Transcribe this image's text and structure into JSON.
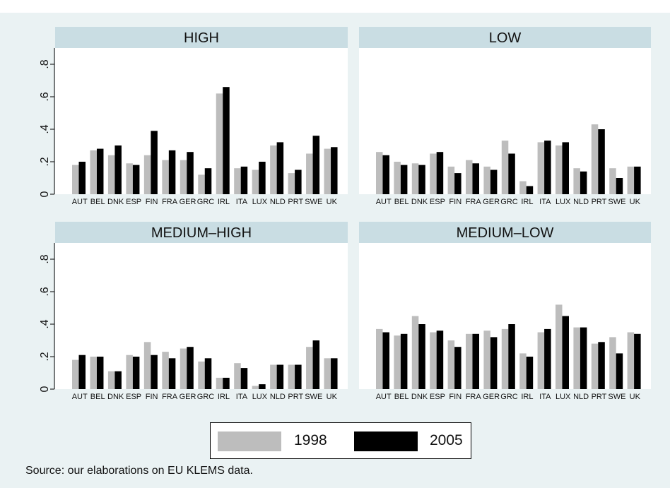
{
  "colors": {
    "s1998": "#bdbdbd",
    "s2005": "#000000",
    "strip": "#c9dde3",
    "plot_bg": "#ffffff",
    "background": "#eaf2f3"
  },
  "legend": {
    "label_1998": "1998",
    "label_2005": "2005"
  },
  "note": "Source: our elaborations on EU KLEMS data.",
  "chart_data": [
    {
      "type": "bar",
      "title": "HIGH",
      "categories": [
        "AUT",
        "BEL",
        "DNK",
        "ESP",
        "FIN",
        "FRA",
        "GER",
        "GRC",
        "IRL",
        "ITA",
        "LUX",
        "NLD",
        "PRT",
        "SWE",
        "UK"
      ],
      "ylim": [
        0,
        0.9
      ],
      "yticks": [
        0,
        0.2,
        0.4,
        0.6,
        0.8
      ],
      "ytick_labels": [
        "0",
        ".2",
        ".4",
        ".6",
        ".8"
      ],
      "series": [
        {
          "name": "1998",
          "values": [
            0.18,
            0.27,
            0.24,
            0.19,
            0.24,
            0.21,
            0.21,
            0.12,
            0.62,
            0.16,
            0.15,
            0.3,
            0.13,
            0.25,
            0.28
          ]
        },
        {
          "name": "2005",
          "values": [
            0.2,
            0.28,
            0.3,
            0.18,
            0.39,
            0.27,
            0.26,
            0.16,
            0.66,
            0.17,
            0.2,
            0.32,
            0.15,
            0.36,
            0.29
          ]
        }
      ]
    },
    {
      "type": "bar",
      "title": "LOW",
      "categories": [
        "AUT",
        "BEL",
        "DNK",
        "ESP",
        "FIN",
        "FRA",
        "GER",
        "GRC",
        "IRL",
        "ITA",
        "LUX",
        "NLD",
        "PRT",
        "SWE",
        "UK"
      ],
      "ylim": [
        0,
        0.9
      ],
      "yticks": [
        0,
        0.2,
        0.4,
        0.6,
        0.8
      ],
      "ytick_labels": [
        "0",
        ".2",
        ".4",
        ".6",
        ".8"
      ],
      "series": [
        {
          "name": "1998",
          "values": [
            0.26,
            0.2,
            0.19,
            0.25,
            0.17,
            0.21,
            0.17,
            0.33,
            0.08,
            0.32,
            0.3,
            0.16,
            0.43,
            0.16,
            0.17
          ]
        },
        {
          "name": "2005",
          "values": [
            0.24,
            0.18,
            0.18,
            0.26,
            0.13,
            0.19,
            0.15,
            0.25,
            0.05,
            0.33,
            0.32,
            0.14,
            0.4,
            0.1,
            0.17
          ]
        }
      ]
    },
    {
      "type": "bar",
      "title": "MEDIUM–HIGH",
      "categories": [
        "AUT",
        "BEL",
        "DNK",
        "ESP",
        "FIN",
        "FRA",
        "GER",
        "GRC",
        "IRL",
        "ITA",
        "LUX",
        "NLD",
        "PRT",
        "SWE",
        "UK"
      ],
      "ylim": [
        0,
        0.9
      ],
      "yticks": [
        0,
        0.2,
        0.4,
        0.6,
        0.8
      ],
      "ytick_labels": [
        "0",
        ".2",
        ".4",
        ".6",
        ".8"
      ],
      "series": [
        {
          "name": "1998",
          "values": [
            0.18,
            0.2,
            0.11,
            0.21,
            0.29,
            0.23,
            0.25,
            0.17,
            0.07,
            0.16,
            0.02,
            0.15,
            0.15,
            0.26,
            0.19
          ]
        },
        {
          "name": "2005",
          "values": [
            0.21,
            0.2,
            0.11,
            0.2,
            0.21,
            0.19,
            0.26,
            0.19,
            0.07,
            0.13,
            0.03,
            0.15,
            0.15,
            0.3,
            0.19
          ]
        }
      ]
    },
    {
      "type": "bar",
      "title": "MEDIUM–LOW",
      "categories": [
        "AUT",
        "BEL",
        "DNK",
        "ESP",
        "FIN",
        "FRA",
        "GER",
        "GRC",
        "IRL",
        "ITA",
        "LUX",
        "NLD",
        "PRT",
        "SWE",
        "UK"
      ],
      "ylim": [
        0,
        0.9
      ],
      "yticks": [
        0,
        0.2,
        0.4,
        0.6,
        0.8
      ],
      "ytick_labels": [
        "0",
        ".2",
        ".4",
        ".6",
        ".8"
      ],
      "series": [
        {
          "name": "1998",
          "values": [
            0.37,
            0.33,
            0.45,
            0.35,
            0.3,
            0.34,
            0.36,
            0.37,
            0.22,
            0.35,
            0.52,
            0.38,
            0.28,
            0.32,
            0.35
          ]
        },
        {
          "name": "2005",
          "values": [
            0.35,
            0.34,
            0.4,
            0.36,
            0.26,
            0.34,
            0.32,
            0.4,
            0.2,
            0.37,
            0.45,
            0.38,
            0.29,
            0.22,
            0.34
          ]
        }
      ]
    }
  ]
}
